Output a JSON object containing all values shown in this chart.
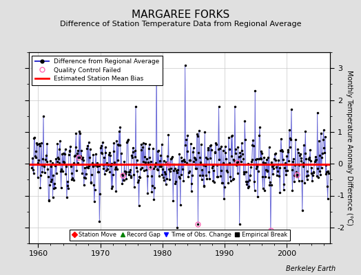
{
  "title": "MARGAREE FORKS",
  "subtitle": "Difference of Station Temperature Data from Regional Average",
  "ylabel": "Monthly Temperature Anomaly Difference (°C)",
  "xlabel_years": [
    1960,
    1970,
    1980,
    1990,
    2000
  ],
  "ylim": [
    -2.5,
    3.5
  ],
  "xlim": [
    1958.5,
    2007.0
  ],
  "mean_bias": -0.02,
  "bg_color": "#e0e0e0",
  "plot_bg_color": "#ffffff",
  "line_color": "#3333cc",
  "line_color_light": "#8888dd",
  "dot_color": "#000000",
  "bias_color": "#ff0000",
  "qc_color": "#ff69b4",
  "credit": "Berkeley Earth",
  "seed": 12345,
  "title_fontsize": 11,
  "subtitle_fontsize": 8,
  "tick_fontsize": 8,
  "ylabel_fontsize": 7
}
